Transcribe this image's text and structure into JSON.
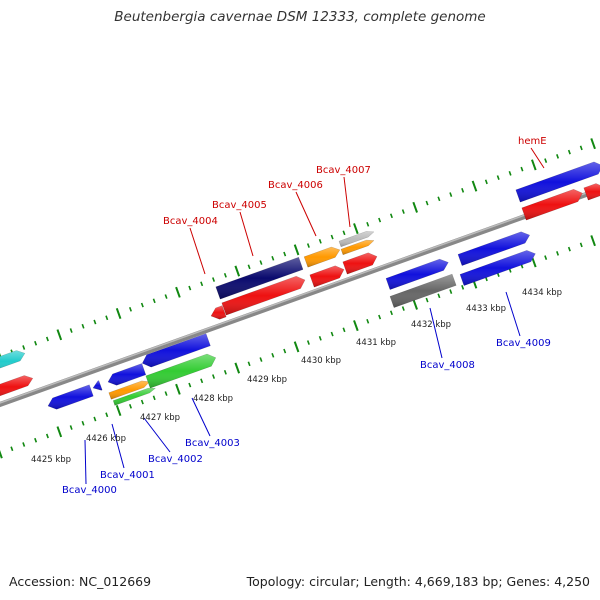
{
  "title": "Beutenbergia cavernae DSM 12333, complete genome",
  "footer": {
    "accession": "Accession: NC_012669",
    "topology": "Topology: circular; Length: 4,669,183 bp; Genes: 4,250"
  },
  "colors": {
    "red": "#ee1111",
    "blue": "#1111dd",
    "navy": "#0a0a6e",
    "orange": "#ff9900",
    "green": "#33cc33",
    "gray": "#666666",
    "lightgray": "#bbbbbb",
    "cyan": "#22cccc",
    "tick": "#118811",
    "top_label": "#cc0000",
    "bottom_label": "#0000cc"
  },
  "scale_labels": [
    "4425 kbp",
    "4426 kbp",
    "4427 kbp",
    "4428 kbp",
    "4429 kbp",
    "4430 kbp",
    "4431 kbp",
    "4432 kbp",
    "4433 kbp",
    "4434 kbp"
  ],
  "gene_labels": {
    "top": [
      "Bcav_4004",
      "Bcav_4005",
      "Bcav_4006",
      "Bcav_4007",
      "hemE"
    ],
    "bottom": [
      "Bcav_4000",
      "Bcav_4001",
      "Bcav_4002",
      "Bcav_4003",
      "Bcav_4008",
      "Bcav_4009"
    ]
  }
}
